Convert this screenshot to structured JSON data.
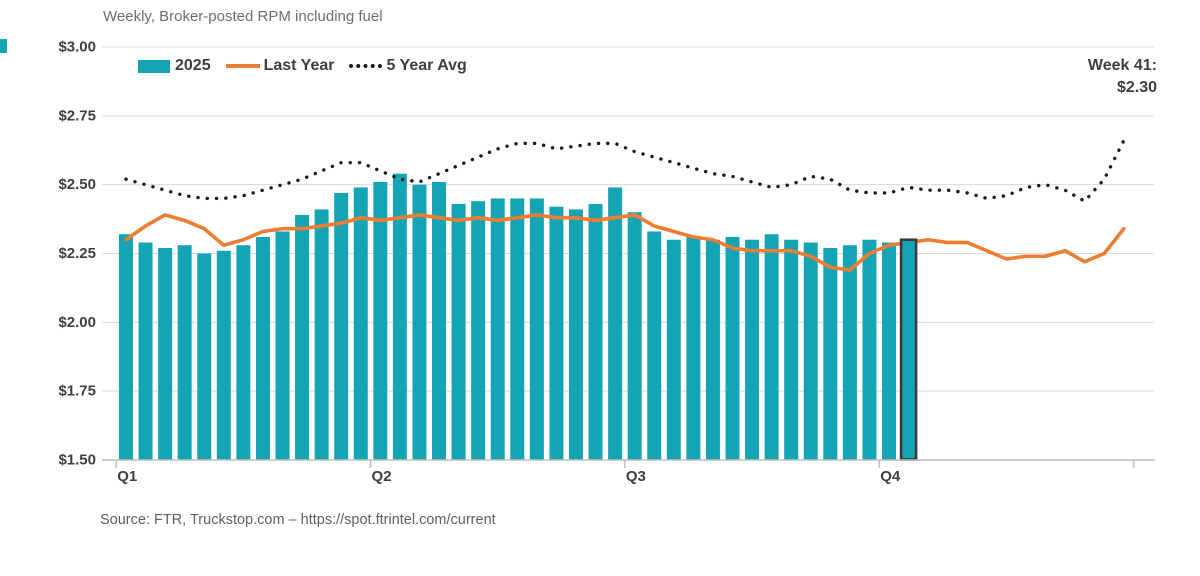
{
  "header": {
    "title": "Weekly, Broker-posted RPM including fuel"
  },
  "legend": [
    {
      "label": "2025",
      "type": "bar",
      "color": "#15a4b4"
    },
    {
      "label": "Last Year",
      "type": "line",
      "color": "#ee7d31"
    },
    {
      "label": "5 Year Avg",
      "type": "dotted-line",
      "color": "#1a1a1a"
    }
  ],
  "annotation": {
    "line1": "Week 41:",
    "line2": "$2.30"
  },
  "footer": {
    "source": "Source: FTR, Truckstop.com – https://spot.ftrintel.com/current"
  },
  "chart_data": {
    "type": "bar",
    "title": "Weekly, Broker-posted RPM including fuel",
    "x_tick_labels": [
      "Q1",
      "Q2",
      "Q3",
      "Q4"
    ],
    "weeks_per_quarter": 13,
    "y_tick_labels": [
      "$3.00",
      "$2.75",
      "$2.50",
      "$2.25",
      "$2.00",
      "$1.75",
      "$1.50"
    ],
    "ylim": [
      1.5,
      3.0
    ],
    "grid": "horizontal",
    "legend_position": "top-left",
    "colors": {
      "bars": "#15a4b4",
      "last_year": "#ee7d31",
      "five_year_avg": "#1a1a1a",
      "gridline": "#d9d9d9",
      "axis": "#c0c0c0",
      "highlight_border": "#3a3a3a"
    },
    "series": [
      {
        "name": "2025",
        "type": "bar",
        "values": [
          2.32,
          2.29,
          2.27,
          2.28,
          2.25,
          2.26,
          2.28,
          2.31,
          2.33,
          2.39,
          2.41,
          2.47,
          2.49,
          2.51,
          2.54,
          2.5,
          2.51,
          2.43,
          2.44,
          2.45,
          2.45,
          2.45,
          2.42,
          2.41,
          2.43,
          2.49,
          2.4,
          2.33,
          2.3,
          2.31,
          2.3,
          2.31,
          2.3,
          2.32,
          2.3,
          2.29,
          2.27,
          2.28,
          2.3,
          2.29,
          2.3
        ]
      },
      {
        "name": "Last Year",
        "type": "line",
        "values": [
          2.3,
          2.35,
          2.39,
          2.37,
          2.34,
          2.28,
          2.3,
          2.33,
          2.34,
          2.34,
          2.35,
          2.36,
          2.38,
          2.37,
          2.38,
          2.39,
          2.38,
          2.37,
          2.38,
          2.37,
          2.38,
          2.39,
          2.38,
          2.38,
          2.37,
          2.38,
          2.39,
          2.35,
          2.33,
          2.31,
          2.3,
          2.27,
          2.26,
          2.26,
          2.26,
          2.24,
          2.2,
          2.19,
          2.25,
          2.28,
          2.29,
          2.3,
          2.29,
          2.29,
          2.26,
          2.23,
          2.24,
          2.24,
          2.26,
          2.22,
          2.25,
          2.34
        ]
      },
      {
        "name": "5 Year Avg",
        "type": "dotted-line",
        "values": [
          2.52,
          2.5,
          2.48,
          2.46,
          2.45,
          2.45,
          2.46,
          2.48,
          2.5,
          2.52,
          2.55,
          2.58,
          2.58,
          2.55,
          2.52,
          2.51,
          2.54,
          2.57,
          2.6,
          2.63,
          2.65,
          2.65,
          2.63,
          2.64,
          2.65,
          2.65,
          2.62,
          2.6,
          2.58,
          2.56,
          2.54,
          2.53,
          2.51,
          2.49,
          2.5,
          2.53,
          2.52,
          2.48,
          2.47,
          2.47,
          2.49,
          2.48,
          2.48,
          2.47,
          2.45,
          2.46,
          2.49,
          2.5,
          2.48,
          2.44,
          2.52,
          2.66
        ]
      }
    ],
    "highlight": {
      "week": 41,
      "value": 2.3,
      "label": "Week 41: $2.30"
    }
  }
}
